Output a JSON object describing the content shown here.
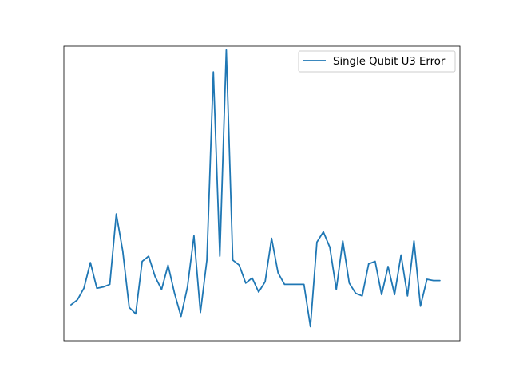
{
  "chart_data": {
    "type": "line",
    "title": "",
    "xlabel": "",
    "ylabel": "",
    "grid": false,
    "legend_position": "top-right",
    "axis_ticks_visible": false,
    "xlim": [
      -1.1,
      60.1
    ],
    "ylim": [
      0.06,
      2.36
    ],
    "series": [
      {
        "name": "Single Qubit U3 Error",
        "color": "#1f77b4",
        "x": [
          0,
          1,
          2,
          3,
          4,
          5,
          6,
          7,
          8,
          9,
          10,
          11,
          12,
          13,
          14,
          15,
          16,
          17,
          18,
          19,
          20,
          21,
          22,
          23,
          24,
          25,
          26,
          27,
          28,
          29,
          30,
          31,
          32,
          33,
          34,
          35,
          36,
          37,
          38,
          39,
          40,
          41,
          42,
          43,
          44,
          45,
          46,
          47,
          48,
          49,
          50,
          51,
          52,
          53,
          54,
          55,
          56,
          57
        ],
        "values": [
          0.34,
          0.38,
          0.47,
          0.67,
          0.47,
          0.48,
          0.5,
          1.05,
          0.76,
          0.32,
          0.27,
          0.68,
          0.72,
          0.56,
          0.46,
          0.65,
          0.43,
          0.25,
          0.48,
          0.88,
          0.28,
          0.69,
          2.16,
          0.72,
          2.33,
          0.69,
          0.65,
          0.51,
          0.55,
          0.44,
          0.52,
          0.86,
          0.59,
          0.5,
          0.5,
          0.5,
          0.5,
          0.17,
          0.83,
          0.91,
          0.79,
          0.46,
          0.84,
          0.51,
          0.43,
          0.41,
          0.66,
          0.68,
          0.42,
          0.64,
          0.42,
          0.73,
          0.41,
          0.84,
          0.33,
          0.54,
          0.53,
          0.53
        ]
      }
    ]
  },
  "legend": {
    "label": "Single Qubit U3 Error"
  }
}
